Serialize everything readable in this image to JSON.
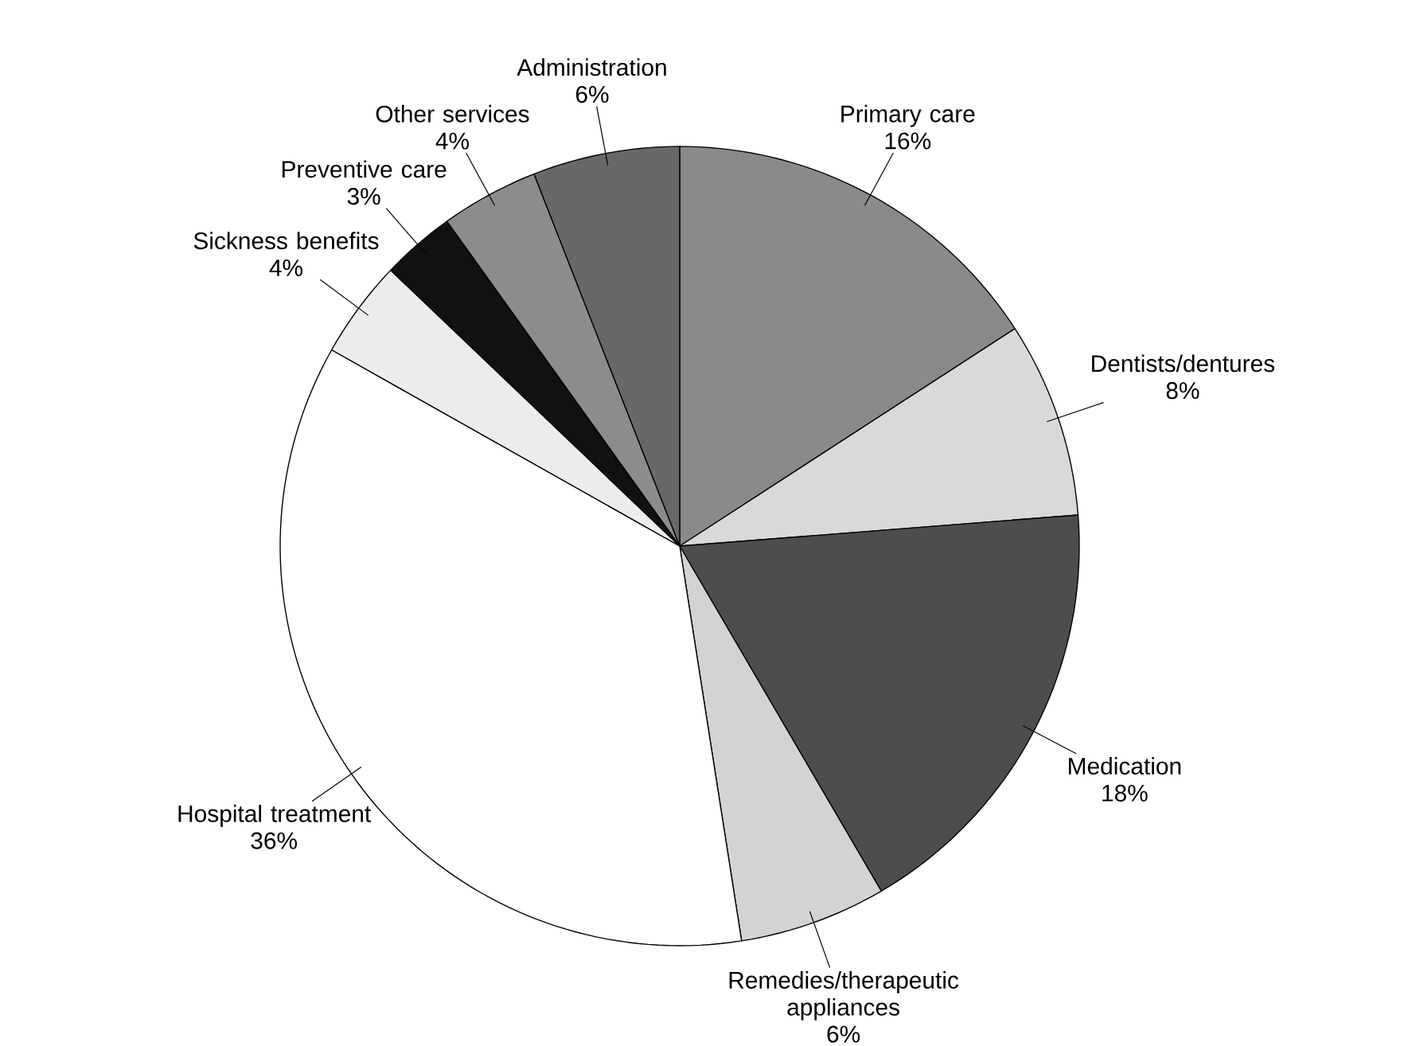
{
  "chart_data": {
    "type": "pie",
    "categories": [
      "Primary care",
      "Dentists/dentures",
      "Medication",
      "Remedies/therapeutic appliances",
      "Hospital treatment",
      "Sickness benefits",
      "Preventive care",
      "Other services",
      "Administration"
    ],
    "values": [
      16,
      8,
      18,
      6,
      36,
      4,
      3,
      4,
      6
    ],
    "value_labels": [
      "16%",
      "8%",
      "18%",
      "6%",
      "36%",
      "4%",
      "3%",
      "4%",
      "6%"
    ],
    "colors": [
      "#8a8a8a",
      "#d9d9d9",
      "#4d4d4d",
      "#d3d3d3",
      "#ffffff",
      "#ececec",
      "#111111",
      "#8c8c8c",
      "#686868"
    ]
  }
}
